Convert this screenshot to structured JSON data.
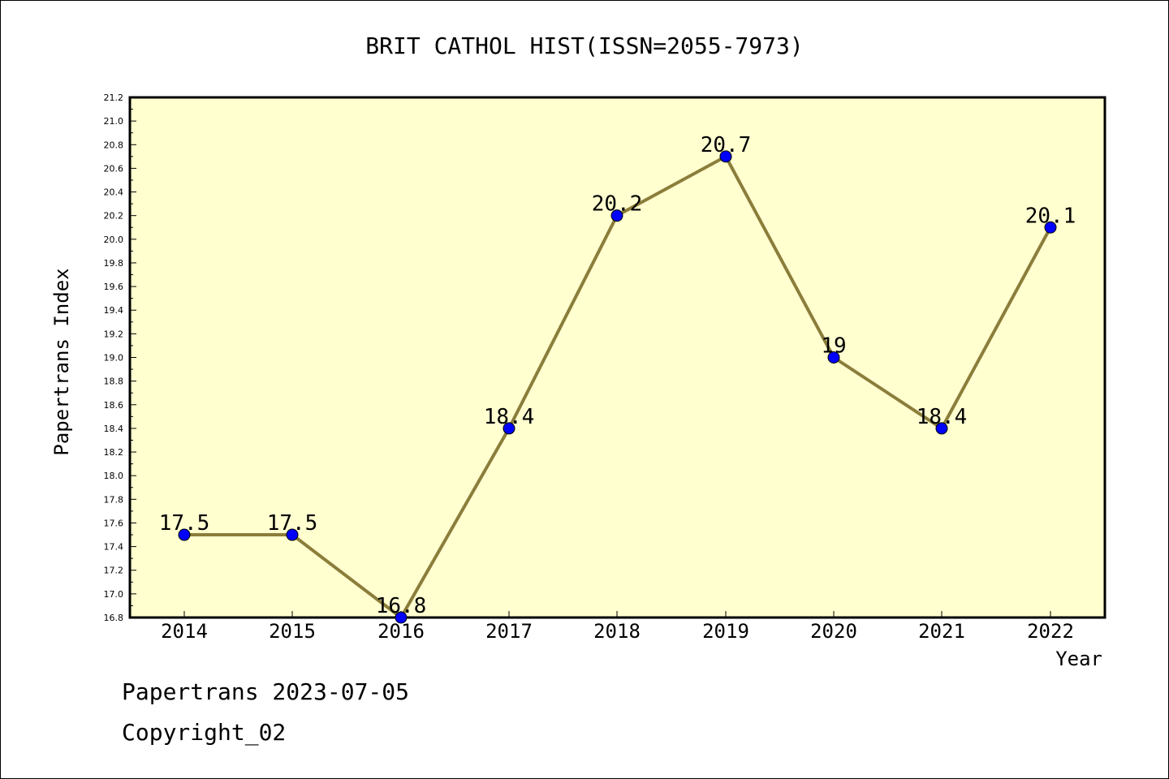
{
  "chart_data": {
    "type": "line",
    "title": "BRIT CATHOL HIST(ISSN=2055-7973)",
    "xlabel": "Year",
    "ylabel": "Papertrans Index",
    "x": [
      "2014",
      "2015",
      "2016",
      "2017",
      "2018",
      "2019",
      "2020",
      "2021",
      "2022"
    ],
    "series": [
      {
        "values": [
          17.5,
          17.5,
          16.8,
          18.4,
          20.2,
          20.7,
          19.0,
          18.4,
          20.1
        ],
        "labels": [
          "17.5",
          "17.5",
          "16.8",
          "18.4",
          "20.2",
          "20.7",
          "19",
          "18.4",
          "20.1"
        ],
        "line_color": "#8b7d3a",
        "marker_color": "#0000ff"
      }
    ],
    "ylim": [
      16.8,
      21.2
    ],
    "yticks": [
      "16.8",
      "17.0",
      "17.2",
      "17.4",
      "17.6",
      "17.8",
      "18.0",
      "18.2",
      "18.4",
      "18.6",
      "18.8",
      "19.0",
      "19.2",
      "19.4",
      "19.6",
      "19.8",
      "20.0",
      "20.2",
      "20.4",
      "20.6",
      "20.8",
      "21.0",
      "21.2"
    ],
    "plot_background": "#ffffd0",
    "grid": false
  },
  "footer": {
    "line1": "Papertrans 2023-07-05",
    "line2": "Copyright_02"
  }
}
